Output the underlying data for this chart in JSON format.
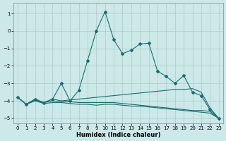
{
  "title": "",
  "xlabel": "Humidex (Indice chaleur)",
  "xlim": [
    -0.5,
    23.5
  ],
  "ylim": [
    -5.3,
    1.6
  ],
  "xticks": [
    0,
    1,
    2,
    3,
    4,
    5,
    6,
    7,
    8,
    9,
    10,
    11,
    12,
    13,
    14,
    15,
    16,
    17,
    18,
    19,
    20,
    21,
    22,
    23
  ],
  "yticks": [
    1,
    0,
    -1,
    -2,
    -3,
    -4,
    -5
  ],
  "background_color": "#cce8e8",
  "grid_color": "#aacccc",
  "line_color": "#1a6e6e",
  "s1_x": [
    0,
    1,
    2,
    3,
    4,
    5,
    6,
    7,
    8,
    9,
    10,
    11,
    12,
    13,
    14,
    15,
    16,
    17,
    18,
    19,
    20,
    21,
    22,
    23
  ],
  "s1_y": [
    -3.8,
    -4.2,
    -3.9,
    -4.1,
    -3.9,
    -3.0,
    -4.0,
    -3.4,
    -1.7,
    0.0,
    1.1,
    -0.5,
    -1.3,
    -1.1,
    -0.75,
    -0.7,
    -2.3,
    -2.6,
    -3.0,
    -2.55,
    -3.5,
    -3.7,
    -4.5,
    -5.0
  ],
  "s2_x": [
    0,
    1,
    2,
    3,
    4,
    5,
    6,
    7,
    8,
    9,
    10,
    11,
    12,
    13,
    14,
    15,
    16,
    17,
    18,
    19,
    20,
    21,
    22,
    23
  ],
  "s2_y": [
    -3.8,
    -4.2,
    -3.9,
    -4.1,
    -3.9,
    -4.0,
    -3.95,
    -3.9,
    -3.85,
    -3.8,
    -3.75,
    -3.7,
    -3.65,
    -3.6,
    -3.55,
    -3.5,
    -3.45,
    -3.4,
    -3.35,
    -3.35,
    -3.3,
    -3.5,
    -4.4,
    -5.0
  ],
  "s3_x": [
    0,
    1,
    2,
    3,
    4,
    5,
    6,
    7,
    8,
    9,
    10,
    11,
    12,
    13,
    14,
    15,
    16,
    17,
    18,
    19,
    20,
    21,
    22,
    23
  ],
  "s3_y": [
    -3.8,
    -4.2,
    -4.0,
    -4.15,
    -4.1,
    -4.1,
    -4.15,
    -4.2,
    -4.2,
    -4.25,
    -4.2,
    -4.2,
    -4.25,
    -4.3,
    -4.3,
    -4.35,
    -4.4,
    -4.45,
    -4.5,
    -4.55,
    -4.6,
    -4.65,
    -4.7,
    -5.0
  ],
  "s4_x": [
    0,
    1,
    2,
    3,
    4,
    5,
    6,
    7,
    8,
    9,
    10,
    11,
    12,
    13,
    14,
    15,
    16,
    17,
    18,
    19,
    20,
    21,
    22,
    23
  ],
  "s4_y": [
    -3.8,
    -4.2,
    -3.95,
    -4.1,
    -4.0,
    -4.05,
    -4.05,
    -4.1,
    -4.1,
    -4.1,
    -4.1,
    -4.1,
    -4.15,
    -4.2,
    -4.25,
    -4.3,
    -4.35,
    -4.4,
    -4.45,
    -4.5,
    -4.55,
    -4.55,
    -4.6,
    -5.0
  ]
}
